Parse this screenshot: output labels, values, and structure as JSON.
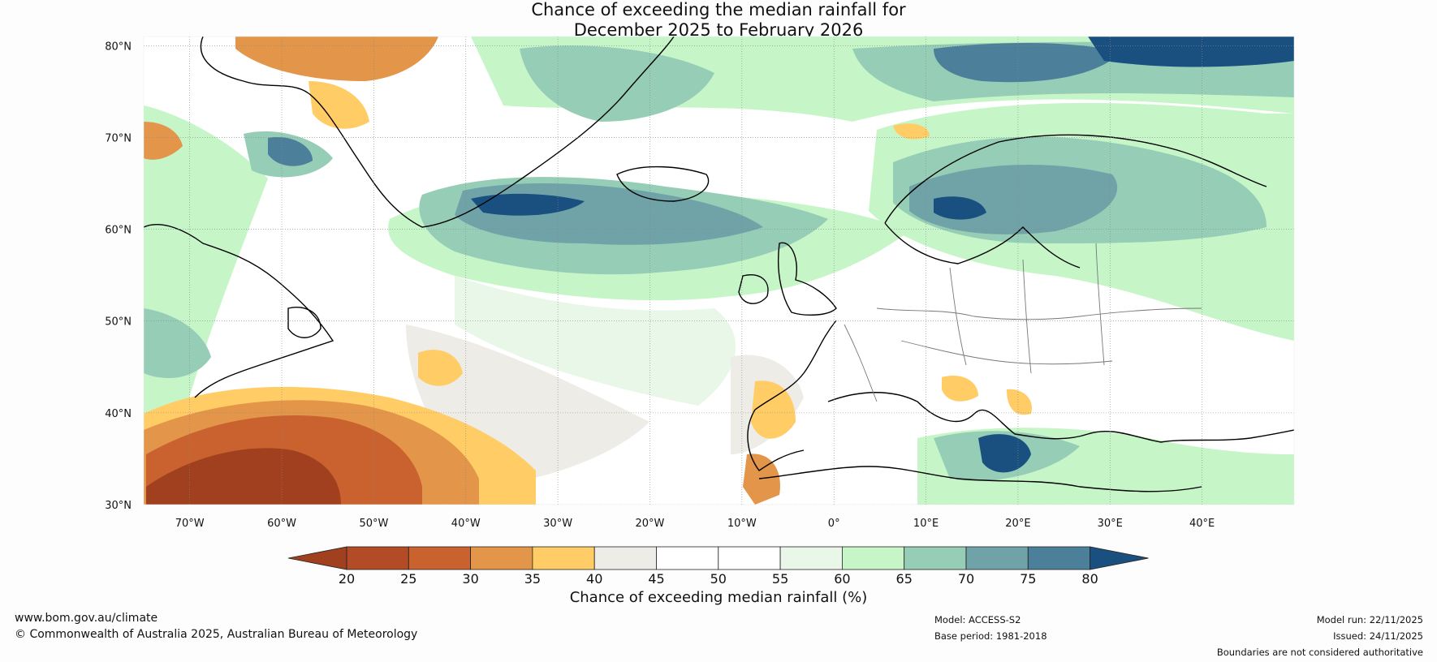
{
  "title": {
    "line1": "Chance of exceeding the median rainfall for",
    "line2": "December 2025 to February 2026"
  },
  "map": {
    "lon_labels": [
      "70°W",
      "60°W",
      "50°W",
      "40°W",
      "30°W",
      "20°W",
      "10°W",
      "0°",
      "10°E",
      "20°E",
      "30°E",
      "40°E"
    ],
    "lat_labels": [
      "80°N",
      "70°N",
      "60°N",
      "50°N",
      "40°N",
      "30°N"
    ],
    "lon_values": [
      -70,
      -60,
      -50,
      -40,
      -30,
      -20,
      -10,
      0,
      10,
      20,
      30,
      40
    ],
    "lat_values": [
      80,
      70,
      60,
      50,
      40,
      30
    ],
    "lon_range": [
      -75,
      50
    ],
    "lat_range": [
      30,
      81
    ]
  },
  "colorbar": {
    "title": "Chance of exceeding median rainfall (%)",
    "ticks": [
      "20",
      "25",
      "30",
      "35",
      "40",
      "45",
      "50",
      "55",
      "60",
      "65",
      "70",
      "75",
      "80"
    ],
    "colors": [
      "#a0401e",
      "#b24b26",
      "#c9622e",
      "#e3954a",
      "#ffcc66",
      "#eeece7",
      "#ffffff",
      "#ffffff",
      "#e8f7e8",
      "#c6f5c8",
      "#96cdb6",
      "#6fa3a7",
      "#4c7f9a",
      "#19507f"
    ]
  },
  "footer": {
    "url": "www.bom.gov.au/climate",
    "copyright": "© Commonwealth of Australia 2025, Australian Bureau of Meteorology",
    "model": "Model: ACCESS-S2",
    "base_period": "Base period: 1981-2018",
    "model_run": "Model run: 22/11/2025",
    "issued": "Issued: 24/11/2025",
    "disclaimer": "Boundaries are not considered authoritative"
  }
}
